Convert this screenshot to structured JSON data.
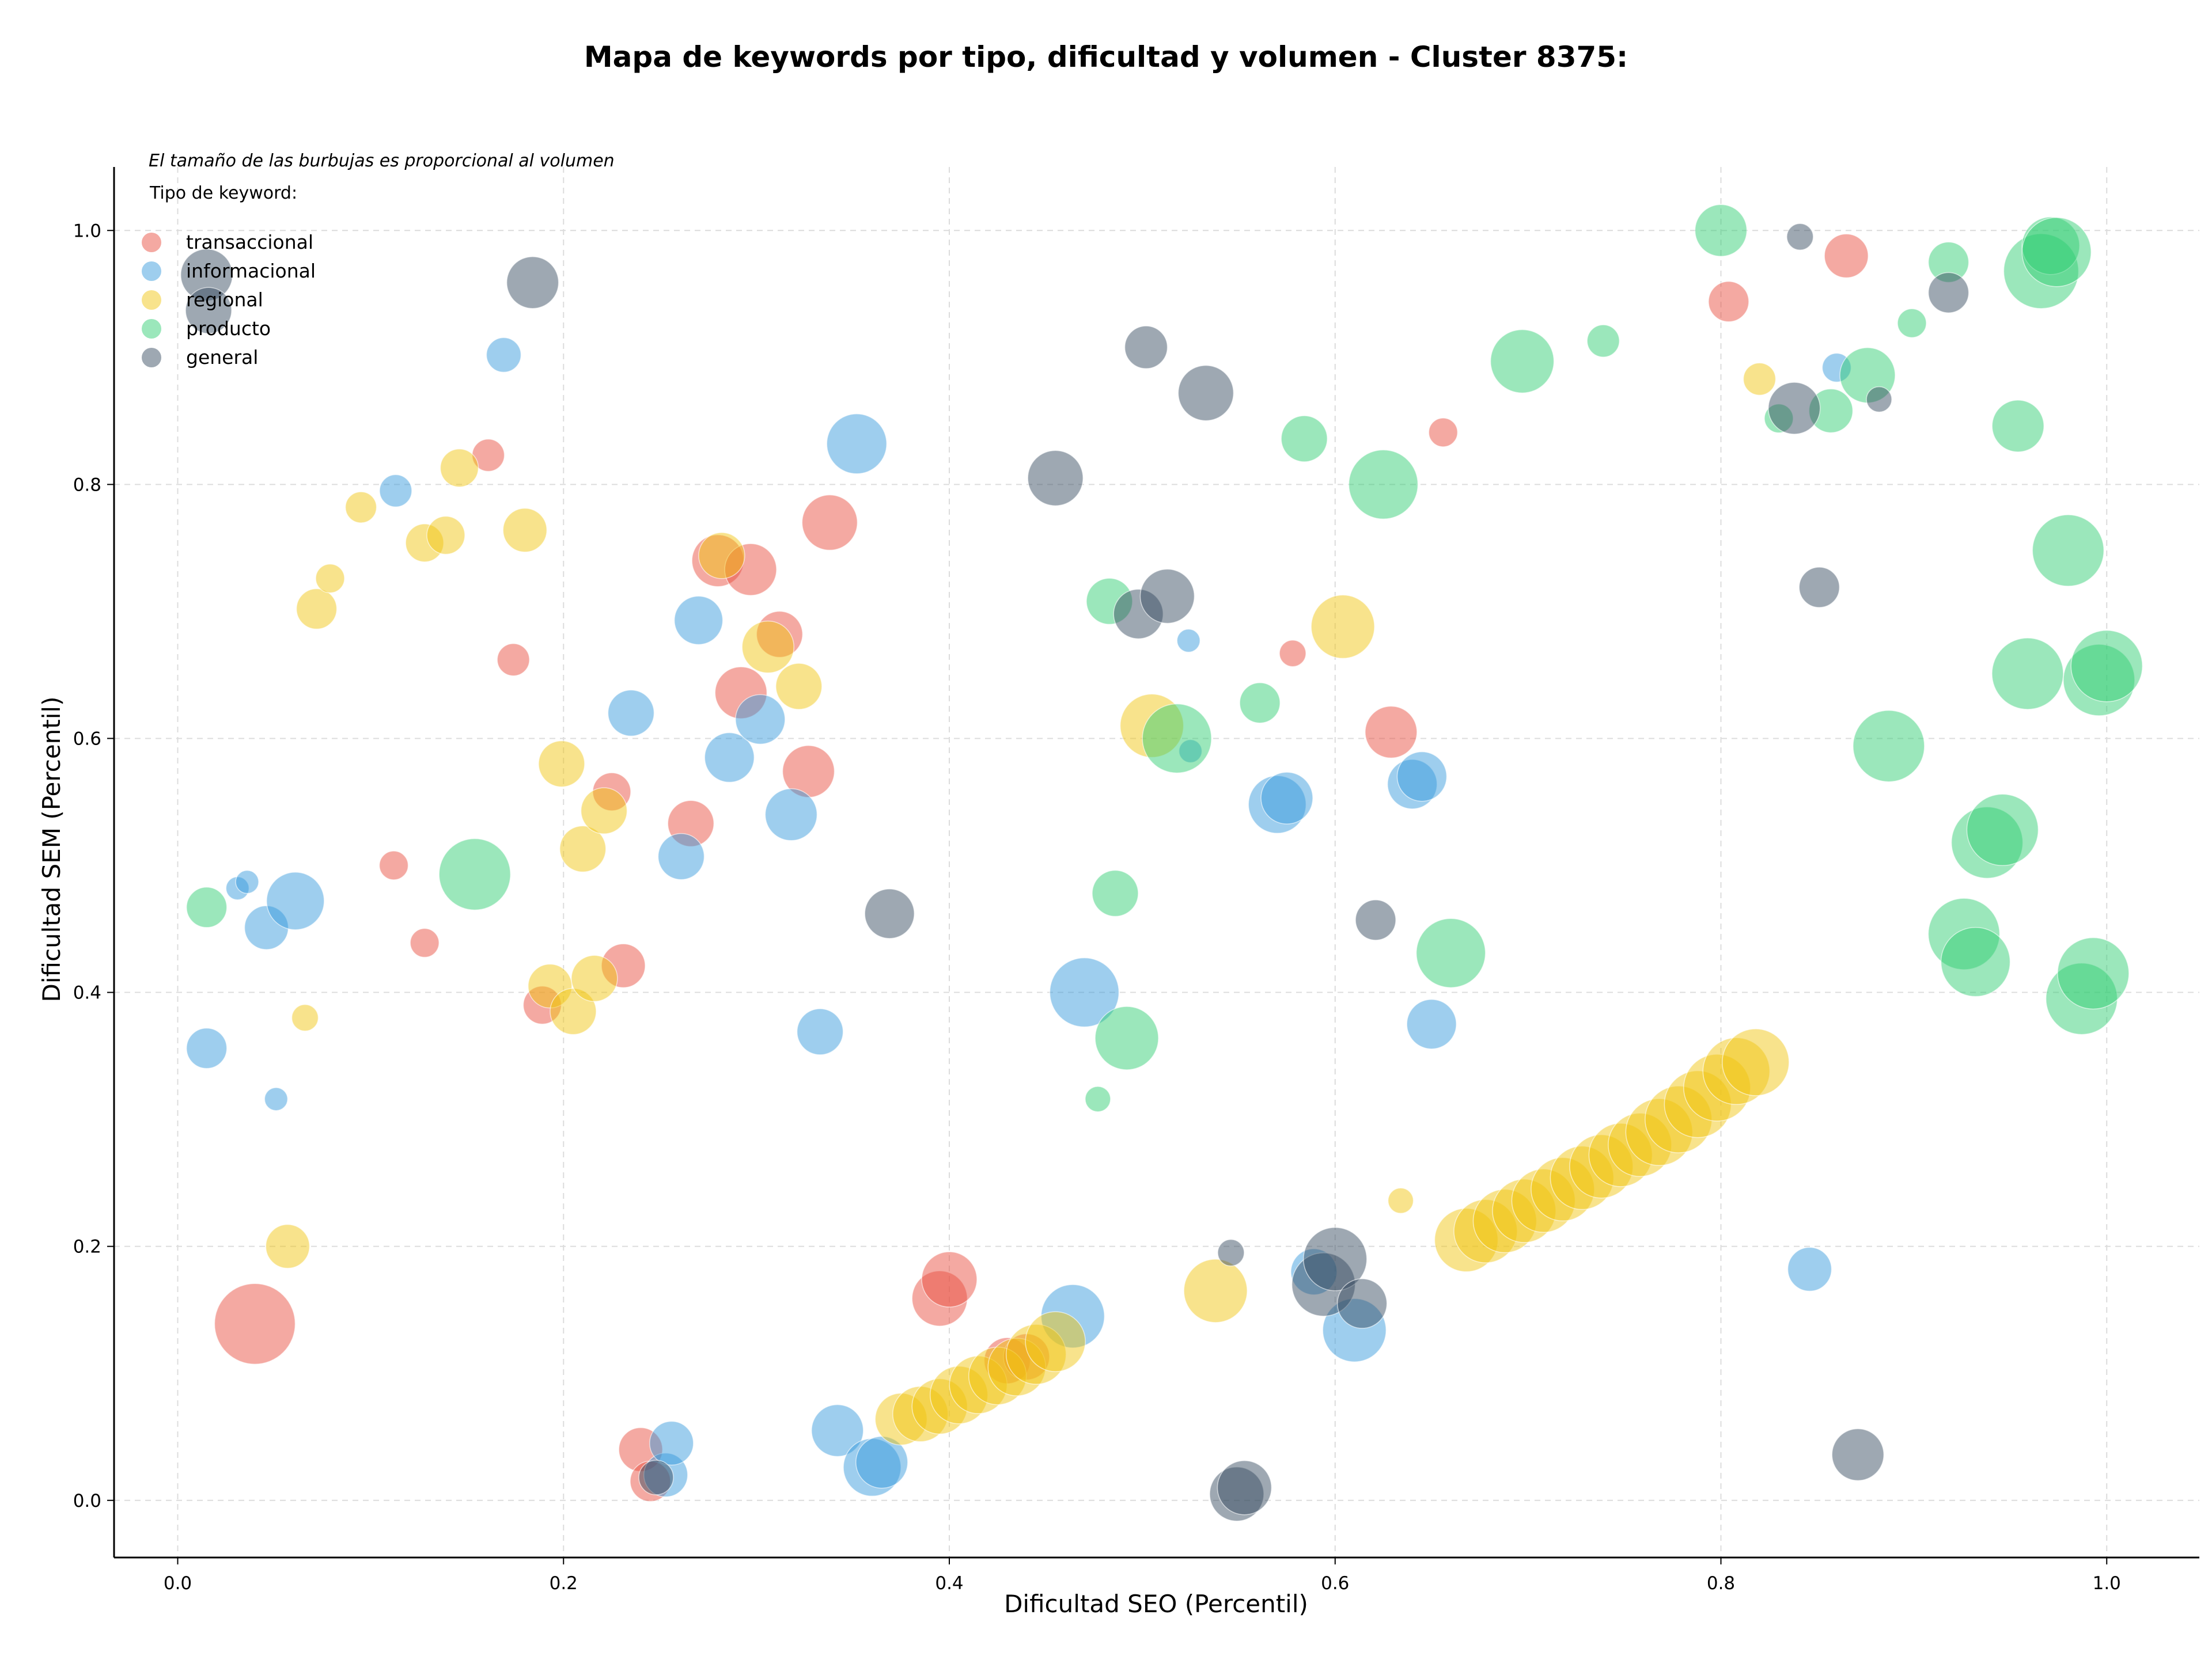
{
  "chart_data": {
    "type": "scatter",
    "title": "Mapa de keywords por tipo, dificultad y volumen - Cluster 8375:",
    "xlabel": "Dificultad SEO (Percentil)",
    "ylabel": "Dificultad SEM (Percentil)",
    "annotation": "El tamaño de las burbujas es proporcional al volumen",
    "legend_title": "Tipo de keyword:",
    "legend_position": "top-left",
    "grid": true,
    "xlim": [
      -0.033,
      1.048
    ],
    "ylim": [
      -0.045,
      1.05
    ],
    "xticks": [
      "0.0",
      "0.2",
      "0.4",
      "0.6",
      "0.8",
      "1.0"
    ],
    "yticks": [
      "0.0",
      "0.2",
      "0.4",
      "0.6",
      "0.8",
      "1.0"
    ],
    "series": [
      {
        "name": "transaccional",
        "color": "#e74c3c",
        "points": [
          [
            0.04,
            0.139,
            70
          ],
          [
            0.112,
            0.5,
            25
          ],
          [
            0.128,
            0.439,
            25
          ],
          [
            0.161,
            0.823,
            28
          ],
          [
            0.174,
            0.662,
            28
          ],
          [
            0.189,
            0.39,
            33
          ],
          [
            0.225,
            0.558,
            33
          ],
          [
            0.231,
            0.421,
            38
          ],
          [
            0.24,
            0.04,
            38
          ],
          [
            0.245,
            0.015,
            35
          ],
          [
            0.266,
            0.533,
            40
          ],
          [
            0.28,
            0.74,
            45
          ],
          [
            0.292,
            0.636,
            45
          ],
          [
            0.297,
            0.733,
            45
          ],
          [
            0.312,
            0.682,
            40
          ],
          [
            0.327,
            0.574,
            45
          ],
          [
            0.338,
            0.77,
            48
          ],
          [
            0.395,
            0.159,
            48
          ],
          [
            0.4,
            0.174,
            48
          ],
          [
            0.43,
            0.11,
            40
          ],
          [
            0.44,
            0.113,
            40
          ],
          [
            0.578,
            0.667,
            23
          ],
          [
            0.629,
            0.605,
            45
          ],
          [
            0.656,
            0.841,
            25
          ],
          [
            0.804,
            0.944,
            35
          ],
          [
            0.865,
            0.98,
            38
          ]
        ]
      },
      {
        "name": "informacional",
        "color": "#3498db",
        "points": [
          [
            0.015,
            0.356,
            35
          ],
          [
            0.031,
            0.482,
            20
          ],
          [
            0.036,
            0.487,
            20
          ],
          [
            0.046,
            0.451,
            38
          ],
          [
            0.051,
            0.316,
            20
          ],
          [
            0.061,
            0.472,
            50
          ],
          [
            0.113,
            0.795,
            28
          ],
          [
            0.169,
            0.902,
            30
          ],
          [
            0.235,
            0.62,
            40
          ],
          [
            0.253,
            0.02,
            38
          ],
          [
            0.256,
            0.045,
            38
          ],
          [
            0.261,
            0.507,
            40
          ],
          [
            0.27,
            0.693,
            42
          ],
          [
            0.286,
            0.585,
            43
          ],
          [
            0.302,
            0.615,
            43
          ],
          [
            0.318,
            0.54,
            45
          ],
          [
            0.333,
            0.369,
            40
          ],
          [
            0.342,
            0.055,
            45
          ],
          [
            0.352,
            0.832,
            52
          ],
          [
            0.36,
            0.026,
            50
          ],
          [
            0.365,
            0.03,
            45
          ],
          [
            0.464,
            0.145,
            55
          ],
          [
            0.47,
            0.4,
            60
          ],
          [
            0.524,
            0.677,
            20
          ],
          [
            0.525,
            0.59,
            20
          ],
          [
            0.57,
            0.548,
            50
          ],
          [
            0.575,
            0.553,
            45
          ],
          [
            0.589,
            0.18,
            40
          ],
          [
            0.61,
            0.134,
            55
          ],
          [
            0.64,
            0.564,
            43
          ],
          [
            0.645,
            0.57,
            43
          ],
          [
            0.65,
            0.375,
            43
          ],
          [
            0.846,
            0.182,
            38
          ],
          [
            0.86,
            0.892,
            25
          ]
        ]
      },
      {
        "name": "regional",
        "color": "#f1c40f",
        "points": [
          [
            0.057,
            0.2,
            38
          ],
          [
            0.066,
            0.38,
            23
          ],
          [
            0.072,
            0.702,
            35
          ],
          [
            0.079,
            0.726,
            25
          ],
          [
            0.095,
            0.782,
            27
          ],
          [
            0.128,
            0.754,
            33
          ],
          [
            0.139,
            0.76,
            33
          ],
          [
            0.146,
            0.813,
            33
          ],
          [
            0.18,
            0.764,
            38
          ],
          [
            0.193,
            0.405,
            38
          ],
          [
            0.199,
            0.58,
            40
          ],
          [
            0.205,
            0.385,
            40
          ],
          [
            0.21,
            0.513,
            40
          ],
          [
            0.216,
            0.411,
            40
          ],
          [
            0.221,
            0.543,
            40
          ],
          [
            0.282,
            0.744,
            40
          ],
          [
            0.306,
            0.672,
            45
          ],
          [
            0.322,
            0.641,
            40
          ],
          [
            0.538,
            0.165,
            55
          ],
          [
            0.505,
            0.61,
            55
          ],
          [
            0.604,
            0.688,
            55
          ],
          [
            0.634,
            0.236,
            22
          ],
          [
            0.82,
            0.883,
            28
          ],
          [
            0.375,
            0.064,
            45
          ],
          [
            0.385,
            0.068,
            48
          ],
          [
            0.395,
            0.074,
            48
          ],
          [
            0.405,
            0.083,
            50
          ],
          [
            0.415,
            0.091,
            50
          ],
          [
            0.425,
            0.098,
            50
          ],
          [
            0.435,
            0.105,
            50
          ],
          [
            0.445,
            0.115,
            52
          ],
          [
            0.455,
            0.125,
            52
          ],
          [
            0.668,
            0.205,
            55
          ],
          [
            0.678,
            0.212,
            55
          ],
          [
            0.688,
            0.22,
            55
          ],
          [
            0.698,
            0.228,
            55
          ],
          [
            0.708,
            0.236,
            55
          ],
          [
            0.718,
            0.245,
            55
          ],
          [
            0.728,
            0.254,
            55
          ],
          [
            0.738,
            0.263,
            55
          ],
          [
            0.748,
            0.272,
            55
          ],
          [
            0.758,
            0.28,
            55
          ],
          [
            0.768,
            0.29,
            58
          ],
          [
            0.778,
            0.3,
            58
          ],
          [
            0.788,
            0.312,
            58
          ],
          [
            0.798,
            0.325,
            58
          ],
          [
            0.808,
            0.338,
            58
          ],
          [
            0.818,
            0.345,
            58
          ]
        ]
      },
      {
        "name": "producto",
        "color": "#2ecc71",
        "points": [
          [
            0.015,
            0.467,
            35
          ],
          [
            0.154,
            0.493,
            62
          ],
          [
            0.477,
            0.316,
            22
          ],
          [
            0.483,
            0.708,
            40
          ],
          [
            0.486,
            0.478,
            40
          ],
          [
            0.492,
            0.364,
            55
          ],
          [
            0.518,
            0.6,
            60
          ],
          [
            0.561,
            0.628,
            35
          ],
          [
            0.584,
            0.836,
            40
          ],
          [
            0.625,
            0.8,
            60
          ],
          [
            0.66,
            0.431,
            60
          ],
          [
            0.697,
            0.897,
            55
          ],
          [
            0.739,
            0.913,
            28
          ],
          [
            0.8,
            1.0,
            45
          ],
          [
            0.83,
            0.852,
            25
          ],
          [
            0.857,
            0.858,
            38
          ],
          [
            0.876,
            0.886,
            48
          ],
          [
            0.887,
            0.594,
            62
          ],
          [
            0.899,
            0.927,
            25
          ],
          [
            0.918,
            0.975,
            35
          ],
          [
            0.926,
            0.446,
            62
          ],
          [
            0.932,
            0.424,
            60
          ],
          [
            0.938,
            0.518,
            62
          ],
          [
            0.946,
            0.528,
            62
          ],
          [
            0.954,
            0.846,
            45
          ],
          [
            0.959,
            0.651,
            62
          ],
          [
            0.966,
            0.968,
            65
          ],
          [
            0.971,
            0.988,
            50
          ],
          [
            0.974,
            0.983,
            60
          ],
          [
            0.98,
            0.748,
            62
          ],
          [
            0.987,
            0.395,
            62
          ],
          [
            0.993,
            0.415,
            62
          ],
          [
            0.996,
            0.646,
            62
          ],
          [
            1.0,
            0.657,
            62
          ]
        ]
      },
      {
        "name": "general",
        "color": "#34495e",
        "points": [
          [
            0.015,
            0.965,
            45
          ],
          [
            0.016,
            0.937,
            40
          ],
          [
            0.184,
            0.959,
            45
          ],
          [
            0.248,
            0.018,
            30
          ],
          [
            0.369,
            0.462,
            43
          ],
          [
            0.455,
            0.805,
            48
          ],
          [
            0.498,
            0.698,
            43
          ],
          [
            0.502,
            0.908,
            37
          ],
          [
            0.513,
            0.712,
            47
          ],
          [
            0.533,
            0.872,
            48
          ],
          [
            0.546,
            0.195,
            23
          ],
          [
            0.549,
            0.005,
            47
          ],
          [
            0.553,
            0.01,
            47
          ],
          [
            0.594,
            0.17,
            55
          ],
          [
            0.6,
            0.19,
            55
          ],
          [
            0.614,
            0.155,
            43
          ],
          [
            0.621,
            0.457,
            35
          ],
          [
            0.838,
            0.86,
            45
          ],
          [
            0.841,
            0.995,
            23
          ],
          [
            0.851,
            0.719,
            35
          ],
          [
            0.871,
            0.036,
            45
          ],
          [
            0.882,
            0.867,
            22
          ],
          [
            0.918,
            0.951,
            35
          ]
        ]
      }
    ]
  }
}
